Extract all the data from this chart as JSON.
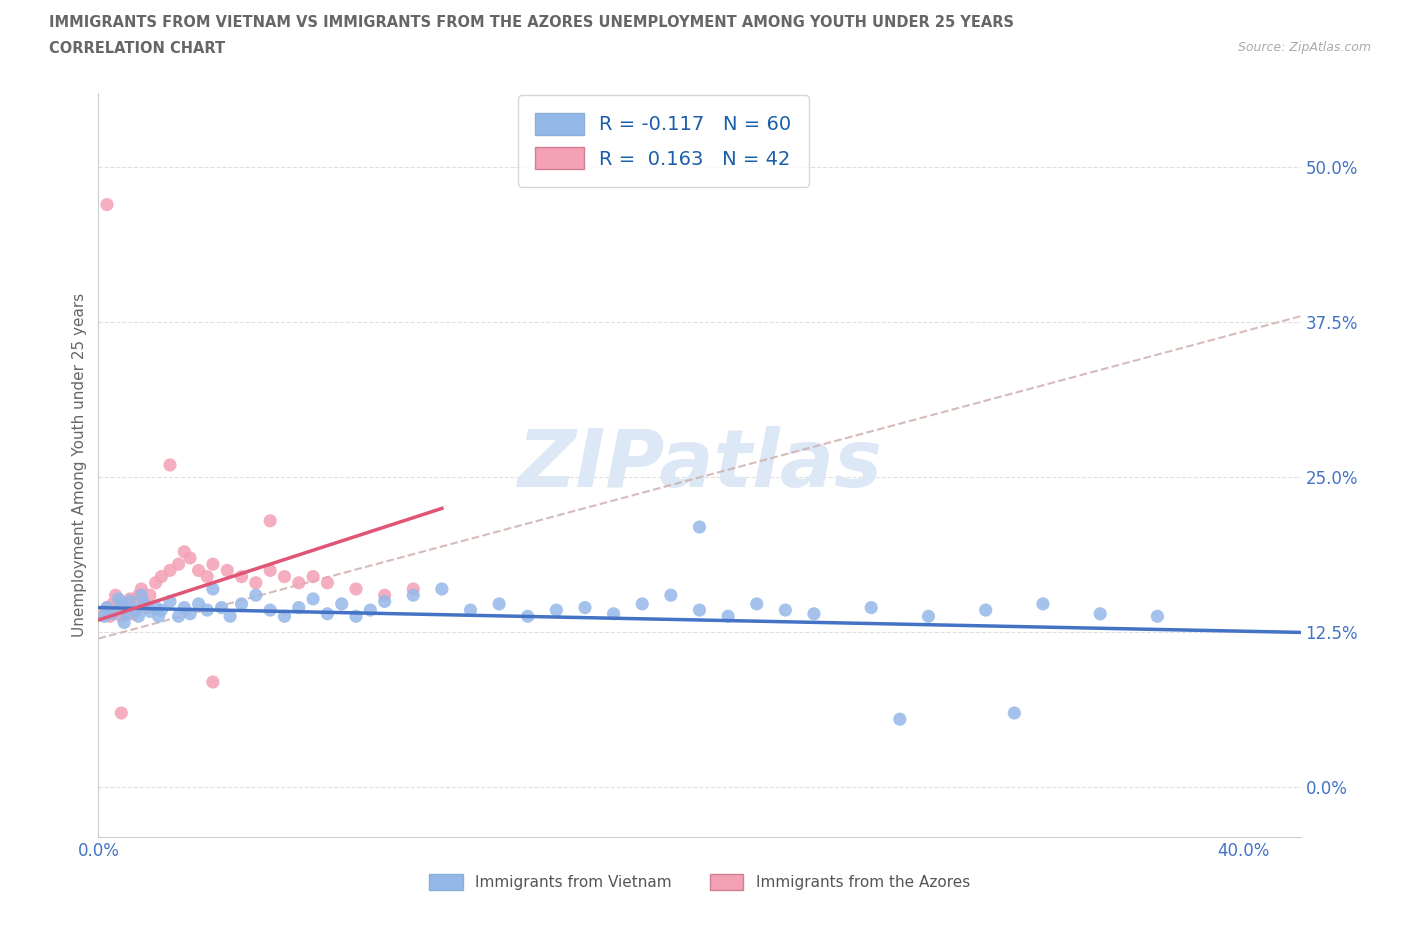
{
  "title_line1": "IMMIGRANTS FROM VIETNAM VS IMMIGRANTS FROM THE AZORES UNEMPLOYMENT AMONG YOUTH UNDER 25 YEARS",
  "title_line2": "CORRELATION CHART",
  "source_text": "Source: ZipAtlas.com",
  "ylabel": "Unemployment Among Youth under 25 years",
  "xlim": [
    0.0,
    0.42
  ],
  "ylim": [
    -0.04,
    0.56
  ],
  "ytick_vals": [
    0.0,
    0.125,
    0.25,
    0.375,
    0.5
  ],
  "ytick_labels": [
    "0.0%",
    "12.5%",
    "25.0%",
    "37.5%",
    "50.0%"
  ],
  "xtick_vals": [
    0.0,
    0.1,
    0.2,
    0.3,
    0.4
  ],
  "xtick_labels": [
    "0.0%",
    "",
    "",
    "",
    "40.0%"
  ],
  "blue_color": "#94b8e8",
  "pink_color": "#f4a0b5",
  "blue_trend_color": "#4472c4",
  "pink_trend_color": "#e05575",
  "gray_dash_color": "#d0b0b0",
  "r_blue": -0.117,
  "n_blue": 60,
  "r_pink": 0.163,
  "n_pink": 42,
  "legend_label_blue": "Immigrants from Vietnam",
  "legend_label_pink": "Immigrants from the Azores",
  "legend_text_color": "#1a5fa8",
  "label_color": "#4472c4",
  "title_color": "#666666",
  "watermark_color": "#dce8f5",
  "axis_color": "#cccccc",
  "grid_color": "#e0e0e0",
  "blue_scatter_x": [
    0.002,
    0.003,
    0.005,
    0.007,
    0.008,
    0.009,
    0.01,
    0.011,
    0.013,
    0.014,
    0.015,
    0.016,
    0.018,
    0.02,
    0.021,
    0.022,
    0.025,
    0.028,
    0.03,
    0.032,
    0.035,
    0.038,
    0.04,
    0.043,
    0.046,
    0.05,
    0.055,
    0.06,
    0.065,
    0.07,
    0.075,
    0.08,
    0.085,
    0.09,
    0.095,
    0.1,
    0.11,
    0.12,
    0.13,
    0.14,
    0.15,
    0.16,
    0.17,
    0.18,
    0.19,
    0.2,
    0.21,
    0.22,
    0.23,
    0.24,
    0.25,
    0.27,
    0.29,
    0.31,
    0.33,
    0.35,
    0.37,
    0.21,
    0.28,
    0.32
  ],
  "blue_scatter_y": [
    0.138,
    0.145,
    0.14,
    0.152,
    0.148,
    0.133,
    0.14,
    0.15,
    0.143,
    0.138,
    0.155,
    0.148,
    0.142,
    0.145,
    0.138,
    0.143,
    0.15,
    0.138,
    0.145,
    0.14,
    0.148,
    0.143,
    0.16,
    0.145,
    0.138,
    0.148,
    0.155,
    0.143,
    0.138,
    0.145,
    0.152,
    0.14,
    0.148,
    0.138,
    0.143,
    0.15,
    0.155,
    0.16,
    0.143,
    0.148,
    0.138,
    0.143,
    0.145,
    0.14,
    0.148,
    0.155,
    0.143,
    0.138,
    0.148,
    0.143,
    0.14,
    0.145,
    0.138,
    0.143,
    0.148,
    0.14,
    0.138,
    0.21,
    0.055,
    0.06
  ],
  "pink_scatter_x": [
    0.002,
    0.003,
    0.004,
    0.005,
    0.006,
    0.007,
    0.008,
    0.009,
    0.01,
    0.011,
    0.012,
    0.013,
    0.014,
    0.015,
    0.016,
    0.017,
    0.018,
    0.02,
    0.022,
    0.025,
    0.028,
    0.03,
    0.032,
    0.035,
    0.038,
    0.04,
    0.045,
    0.05,
    0.055,
    0.06,
    0.065,
    0.07,
    0.075,
    0.08,
    0.09,
    0.1,
    0.11,
    0.003,
    0.025,
    0.06,
    0.008,
    0.04
  ],
  "pink_scatter_y": [
    0.14,
    0.145,
    0.138,
    0.148,
    0.155,
    0.143,
    0.138,
    0.145,
    0.148,
    0.152,
    0.14,
    0.148,
    0.155,
    0.16,
    0.148,
    0.145,
    0.155,
    0.165,
    0.17,
    0.175,
    0.18,
    0.19,
    0.185,
    0.175,
    0.17,
    0.18,
    0.175,
    0.17,
    0.165,
    0.175,
    0.17,
    0.165,
    0.17,
    0.165,
    0.16,
    0.155,
    0.16,
    0.47,
    0.26,
    0.215,
    0.06,
    0.085
  ],
  "gray_line_x": [
    0.0,
    0.42
  ],
  "gray_line_y": [
    0.12,
    0.38
  ],
  "blue_trend_x": [
    0.0,
    0.42
  ],
  "blue_trend_y": [
    0.145,
    0.125
  ],
  "pink_trend_x": [
    0.0,
    0.12
  ],
  "pink_trend_y": [
    0.135,
    0.225
  ]
}
